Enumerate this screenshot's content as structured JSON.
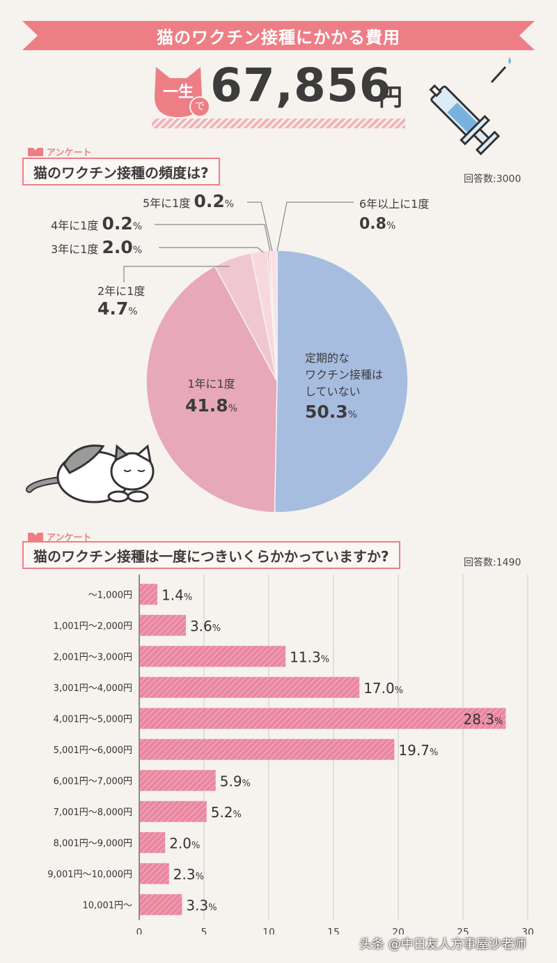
{
  "header": {
    "title": "猫のワクチン接種にかかる費用",
    "lifetime_label": "一生",
    "lifetime_de": "で",
    "amount": "67,856",
    "yen": "円"
  },
  "colors": {
    "accent": "#ee7e86",
    "pie_blue": "#a7bde0",
    "pie_pink": "#e7a8ba",
    "bar": "#e9879f"
  },
  "survey_tag": "アンケート",
  "pie_section": {
    "question": "猫のワクチン接種の頻度は?",
    "count": "回答数:3000",
    "labels": [
      {
        "text": "5年に1度",
        "value": "0.2",
        "unit": "%"
      },
      {
        "text": "4年に1度",
        "value": "0.2",
        "unit": "%"
      },
      {
        "text": "3年に1度",
        "value": "2.0",
        "unit": "%"
      },
      {
        "text": "2年に1度",
        "value": "4.7",
        "unit": "%"
      },
      {
        "text": "6年以上に1度",
        "value": "0.8",
        "unit": "%"
      },
      {
        "text": "1年に1度",
        "value": "41.8",
        "unit": "%"
      },
      {
        "text1": "定期的な",
        "text2": "ワクチン接種は",
        "text3": "していない",
        "value": "50.3",
        "unit": "%"
      }
    ]
  },
  "bar_section": {
    "question": "猫のワクチン接種は一度につきいくらかかっていますか?",
    "count": "回答数:1490"
  },
  "chart_data": [
    {
      "type": "pie",
      "categories": [
        "定期的なワクチン接種はしていない",
        "1年に1度",
        "2年に1度",
        "3年に1度",
        "4年に1度",
        "5年に1度",
        "6年以上に1度"
      ],
      "values": [
        50.3,
        41.8,
        4.7,
        2.0,
        0.2,
        0.2,
        0.8
      ],
      "colors": [
        "#a7bde0",
        "#e7a8ba",
        "#f0c7d1",
        "#f6d8de",
        "#ef8d8d",
        "#f4b8c2",
        "#f9dfe4"
      ],
      "unit": "%"
    },
    {
      "type": "bar",
      "orientation": "horizontal",
      "categories": [
        "〜1,000円",
        "1,001円〜2,000円",
        "2,001円〜3,000円",
        "3,001円〜4,000円",
        "4,001円〜5,000円",
        "5,001円〜6,000円",
        "6,001円〜7,000円",
        "7,001円〜8,000円",
        "8,001円〜9,000円",
        "9,001円〜10,000円",
        "10,001円〜"
      ],
      "values": [
        1.4,
        3.6,
        11.3,
        17.0,
        28.3,
        19.7,
        5.9,
        5.2,
        2.0,
        2.3,
        3.3
      ],
      "value_labels": [
        "1.4",
        "3.6",
        "11.3",
        "17.0",
        "28.3",
        "19.7",
        "5.9",
        "5.2",
        "2.0",
        "2.3",
        "3.3"
      ],
      "unit": "%",
      "xlim": [
        0,
        30
      ],
      "xticks": [
        0,
        5,
        10,
        15,
        20,
        25,
        30
      ],
      "grid": true
    }
  ],
  "watermark": "头条 @中日友人方事屋沙老师"
}
